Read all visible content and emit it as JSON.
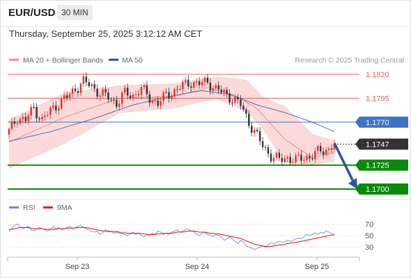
{
  "header": {
    "symbol": "EUR/USD",
    "timeframe": "30 MIN",
    "datetime": "Thursday, September 25, 2025 3:12:12 AM CET"
  },
  "legend": {
    "ma20_label": "MA 20 + Bollinger Bands",
    "ma50_label": "MA 50",
    "credit": "Research © 2025 Trading Central",
    "rsi_label": "RSI",
    "rsi_ma_label": "9MA"
  },
  "colors": {
    "bullish": "#e03030",
    "bearish": "#333333",
    "ma20": "#f08a8a",
    "bollinger_fill": "#fddada",
    "ma50": "#4a6fb3",
    "resistance": "#e06060",
    "pivot": "#3d74c8",
    "support": "#0a8a0a",
    "current_price": "#333333",
    "arrow": "#2a55a0",
    "rsi": "#6a90d8",
    "rsi_ma": "#e02020"
  },
  "chart_data": [
    {
      "type": "candlestick",
      "title": "EUR/USD 30 MIN",
      "price_axis_range": [
        1.1692,
        1.1827
      ],
      "x_ticks": [
        "Sep 23",
        "Sep 24",
        "Sep 25"
      ],
      "levels": [
        {
          "name": "resistance-2",
          "value": 1.182,
          "label": "1.1820"
        },
        {
          "name": "resistance-1",
          "value": 1.1795,
          "label": "1.1795"
        },
        {
          "name": "pivot",
          "value": 1.177,
          "label": "1.1770"
        },
        {
          "name": "current-price",
          "value": 1.1747,
          "label": "1.1747"
        },
        {
          "name": "support-1",
          "value": 1.1725,
          "label": "1.1725"
        },
        {
          "name": "support-2",
          "value": 1.17,
          "label": "1.1700"
        }
      ],
      "forecast_arrow": {
        "from": 1.1748,
        "to": 1.17
      },
      "anchors": [
        [
          0,
          1.176
        ],
        [
          3,
          1.1775
        ],
        [
          6,
          1.1772
        ],
        [
          9,
          1.1785
        ],
        [
          12,
          1.1772
        ],
        [
          15,
          1.1782
        ],
        [
          18,
          1.179
        ],
        [
          21,
          1.1796
        ],
        [
          24,
          1.1805
        ],
        [
          27,
          1.1812
        ],
        [
          30,
          1.1808
        ],
        [
          33,
          1.18
        ],
        [
          36,
          1.1796
        ],
        [
          39,
          1.179
        ],
        [
          42,
          1.18
        ],
        [
          45,
          1.1798
        ],
        [
          48,
          1.1805
        ],
        [
          51,
          1.1795
        ],
        [
          54,
          1.179
        ],
        [
          57,
          1.1798
        ],
        [
          60,
          1.1803
        ],
        [
          63,
          1.1808
        ],
        [
          66,
          1.1812
        ],
        [
          69,
          1.181
        ],
        [
          72,
          1.1812
        ],
        [
          75,
          1.1805
        ],
        [
          78,
          1.18
        ],
        [
          81,
          1.1795
        ],
        [
          84,
          1.1788
        ],
        [
          87,
          1.177
        ],
        [
          89,
          1.176
        ],
        [
          92,
          1.1745
        ],
        [
          95,
          1.1735
        ],
        [
          98,
          1.173
        ],
        [
          101,
          1.1733
        ],
        [
          104,
          1.173
        ],
        [
          107,
          1.1733
        ],
        [
          110,
          1.1735
        ],
        [
          113,
          1.174
        ],
        [
          116,
          1.1742
        ],
        [
          118,
          1.1747
        ]
      ],
      "candle_count": 119,
      "ma20": [
        [
          0,
          1.1749
        ],
        [
          20,
          1.1775
        ],
        [
          40,
          1.1795
        ],
        [
          60,
          1.1797
        ],
        [
          72,
          1.1806
        ],
        [
          82,
          1.1798
        ],
        [
          90,
          1.1784
        ],
        [
          100,
          1.1752
        ],
        [
          110,
          1.1733
        ],
        [
          118,
          1.1738
        ]
      ],
      "bollinger_upper": [
        [
          0,
          1.1772
        ],
        [
          20,
          1.18
        ],
        [
          40,
          1.1808
        ],
        [
          60,
          1.181
        ],
        [
          75,
          1.1817
        ],
        [
          86,
          1.1814
        ],
        [
          92,
          1.1796
        ],
        [
          100,
          1.1786
        ],
        [
          110,
          1.1757
        ],
        [
          118,
          1.175
        ]
      ],
      "bollinger_lower": [
        [
          0,
          1.1722
        ],
        [
          20,
          1.1748
        ],
        [
          40,
          1.178
        ],
        [
          60,
          1.1785
        ],
        [
          75,
          1.1795
        ],
        [
          86,
          1.1782
        ],
        [
          92,
          1.1764
        ],
        [
          100,
          1.1728
        ],
        [
          110,
          1.1726
        ],
        [
          118,
          1.1729
        ]
      ],
      "ma50": [
        [
          0,
          1.175
        ],
        [
          15,
          1.176
        ],
        [
          30,
          1.1773
        ],
        [
          45,
          1.1788
        ],
        [
          60,
          1.1798
        ],
        [
          70,
          1.1803
        ],
        [
          80,
          1.1799
        ],
        [
          90,
          1.1788
        ],
        [
          100,
          1.178
        ],
        [
          110,
          1.177
        ],
        [
          118,
          1.176
        ]
      ]
    },
    {
      "type": "line",
      "title": "RSI",
      "y_ticks": [
        70,
        50,
        30
      ],
      "ylim": [
        15,
        85
      ],
      "series": [
        {
          "name": "RSI",
          "values": [
            58,
            62,
            68,
            70,
            66,
            62,
            64,
            66,
            60,
            58,
            62,
            64,
            62,
            60,
            58,
            60,
            66,
            62,
            64,
            60,
            62,
            64,
            66,
            62,
            64,
            66,
            68,
            64,
            62,
            60,
            58,
            56,
            58,
            52,
            55,
            60,
            56,
            58,
            54,
            56,
            54,
            53,
            52,
            50,
            52,
            56,
            52,
            55,
            50,
            48,
            52,
            50,
            54,
            52,
            58,
            56,
            52,
            54,
            52,
            56,
            58,
            60,
            56,
            58,
            60,
            62,
            58,
            57,
            52,
            50,
            54,
            56,
            52,
            50,
            48,
            52,
            50,
            48,
            42,
            44,
            48,
            44,
            40,
            36,
            42,
            38,
            32,
            30,
            28,
            26,
            28,
            30,
            32,
            30,
            34,
            38,
            35,
            38,
            40,
            38,
            40,
            42,
            40,
            42,
            44,
            46,
            45,
            48,
            52,
            50,
            52,
            55,
            52,
            56,
            54,
            58,
            56,
            54,
            52
          ]
        },
        {
          "name": "9MA",
          "values": [
            60,
            61,
            62,
            63,
            64,
            64,
            64,
            64,
            63,
            62,
            62,
            62,
            62,
            61,
            61,
            61,
            61,
            61,
            62,
            62,
            62,
            63,
            63,
            63,
            63,
            64,
            64,
            64,
            64,
            63,
            62,
            61,
            60,
            59,
            58,
            58,
            58,
            57,
            57,
            57,
            56,
            55,
            55,
            54,
            54,
            54,
            54,
            54,
            53,
            53,
            52,
            52,
            52,
            52,
            53,
            53,
            54,
            54,
            54,
            54,
            55,
            56,
            56,
            56,
            57,
            58,
            58,
            58,
            57,
            56,
            56,
            56,
            55,
            54,
            54,
            53,
            53,
            52,
            51,
            50,
            49,
            48,
            47,
            46,
            45,
            43,
            41,
            39,
            37,
            35,
            34,
            33,
            32,
            31,
            31,
            31,
            32,
            33,
            34,
            34,
            35,
            36,
            37,
            38,
            38,
            39,
            40,
            41,
            42,
            43,
            44,
            45,
            46,
            47,
            48,
            49,
            50,
            51,
            51
          ]
        }
      ]
    }
  ]
}
